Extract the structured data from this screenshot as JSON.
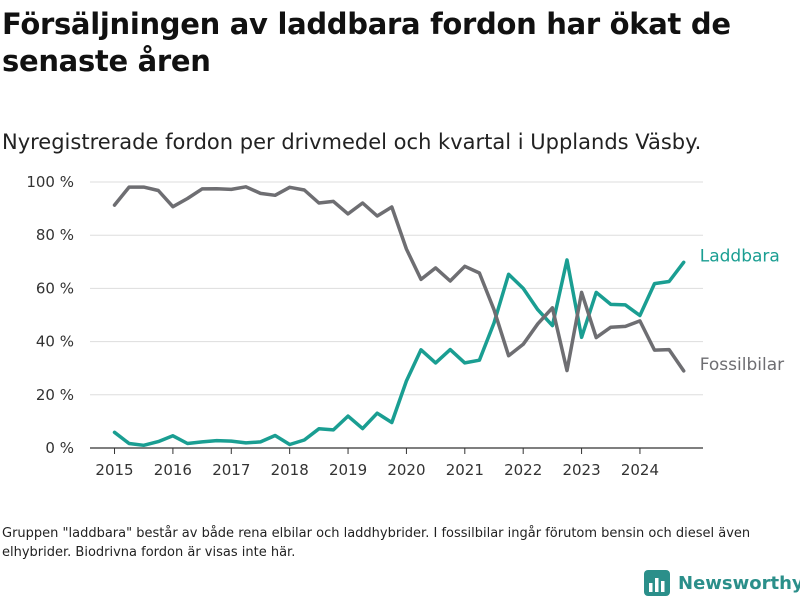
{
  "title": "Försäljningen av laddbara fordon har ökat de senaste åren",
  "subtitle": "Nyregistrerade fordon per drivmedel och kvartal i Upplands Väsby.",
  "footnote": "Gruppen \"laddbara\" består av både rena elbilar och laddhybrider. I fossilbilar ingår förutom bensin och diesel även elhybrider. Biodrivna fordon är visas inte här.",
  "brand": "Newsworthy",
  "colors": {
    "laddbara": "#1a9e92",
    "fossilbilar": "#6e6e72",
    "grid": "#dddddd",
    "axis": "#333333",
    "brand": "#2b8f8a"
  },
  "chart_data": {
    "type": "line",
    "title": "Försäljningen av laddbara fordon har ökat de senaste åren",
    "xlabel": "",
    "ylabel": "",
    "xlim": [
      2014.58,
      2025.08
    ],
    "ylim": [
      0,
      100
    ],
    "y_ticks": [
      0,
      20,
      40,
      60,
      80,
      100
    ],
    "y_tick_labels": [
      "0 %",
      "20 %",
      "40 %",
      "60 %",
      "80 %",
      "100 %"
    ],
    "x_ticks": [
      2015,
      2016,
      2017,
      2018,
      2019,
      2020,
      2021,
      2022,
      2023,
      2024
    ],
    "x_tick_labels": [
      "2015",
      "2016",
      "2017",
      "2018",
      "2019",
      "2020",
      "2021",
      "2022",
      "2023",
      "2024"
    ],
    "grid": true,
    "x": [
      2015.0,
      2015.25,
      2015.5,
      2015.75,
      2016.0,
      2016.25,
      2016.5,
      2016.75,
      2017.0,
      2017.25,
      2017.5,
      2017.75,
      2018.0,
      2018.25,
      2018.5,
      2018.75,
      2019.0,
      2019.25,
      2019.5,
      2019.75,
      2020.0,
      2020.25,
      2020.5,
      2020.75,
      2021.0,
      2021.25,
      2021.5,
      2021.75,
      2022.0,
      2022.25,
      2022.5,
      2022.75,
      2023.0,
      2023.25,
      2023.5,
      2023.75,
      2024.0,
      2024.25,
      2024.5,
      2024.75
    ],
    "series": [
      {
        "name": "Laddbara",
        "values": [
          5.9,
          1.7,
          1.0,
          2.4,
          4.6,
          1.7,
          2.3,
          2.8,
          2.6,
          1.9,
          2.3,
          4.7,
          1.3,
          3.0,
          7.2,
          6.8,
          12.0,
          7.3,
          13.1,
          9.6,
          25.2,
          36.9,
          32.0,
          37.0,
          32.0,
          33.0,
          47.0,
          65.3,
          60.0,
          52.0,
          46.0,
          70.7,
          41.6,
          58.5,
          54.0,
          53.8,
          49.8,
          61.8,
          62.6,
          69.8
        ]
      },
      {
        "name": "Fossilbilar",
        "values": [
          91.3,
          98.1,
          98.1,
          96.8,
          90.7,
          93.8,
          97.4,
          97.5,
          97.2,
          98.2,
          95.7,
          95.0,
          98.0,
          97.0,
          92.1,
          92.7,
          88.0,
          92.1,
          87.2,
          90.6,
          74.8,
          63.4,
          67.7,
          62.8,
          68.3,
          65.8,
          52.0,
          34.7,
          39.0,
          46.7,
          52.7,
          29.1,
          58.5,
          41.5,
          45.4,
          45.7,
          47.8,
          36.8,
          37.0,
          29.0
        ]
      }
    ]
  }
}
